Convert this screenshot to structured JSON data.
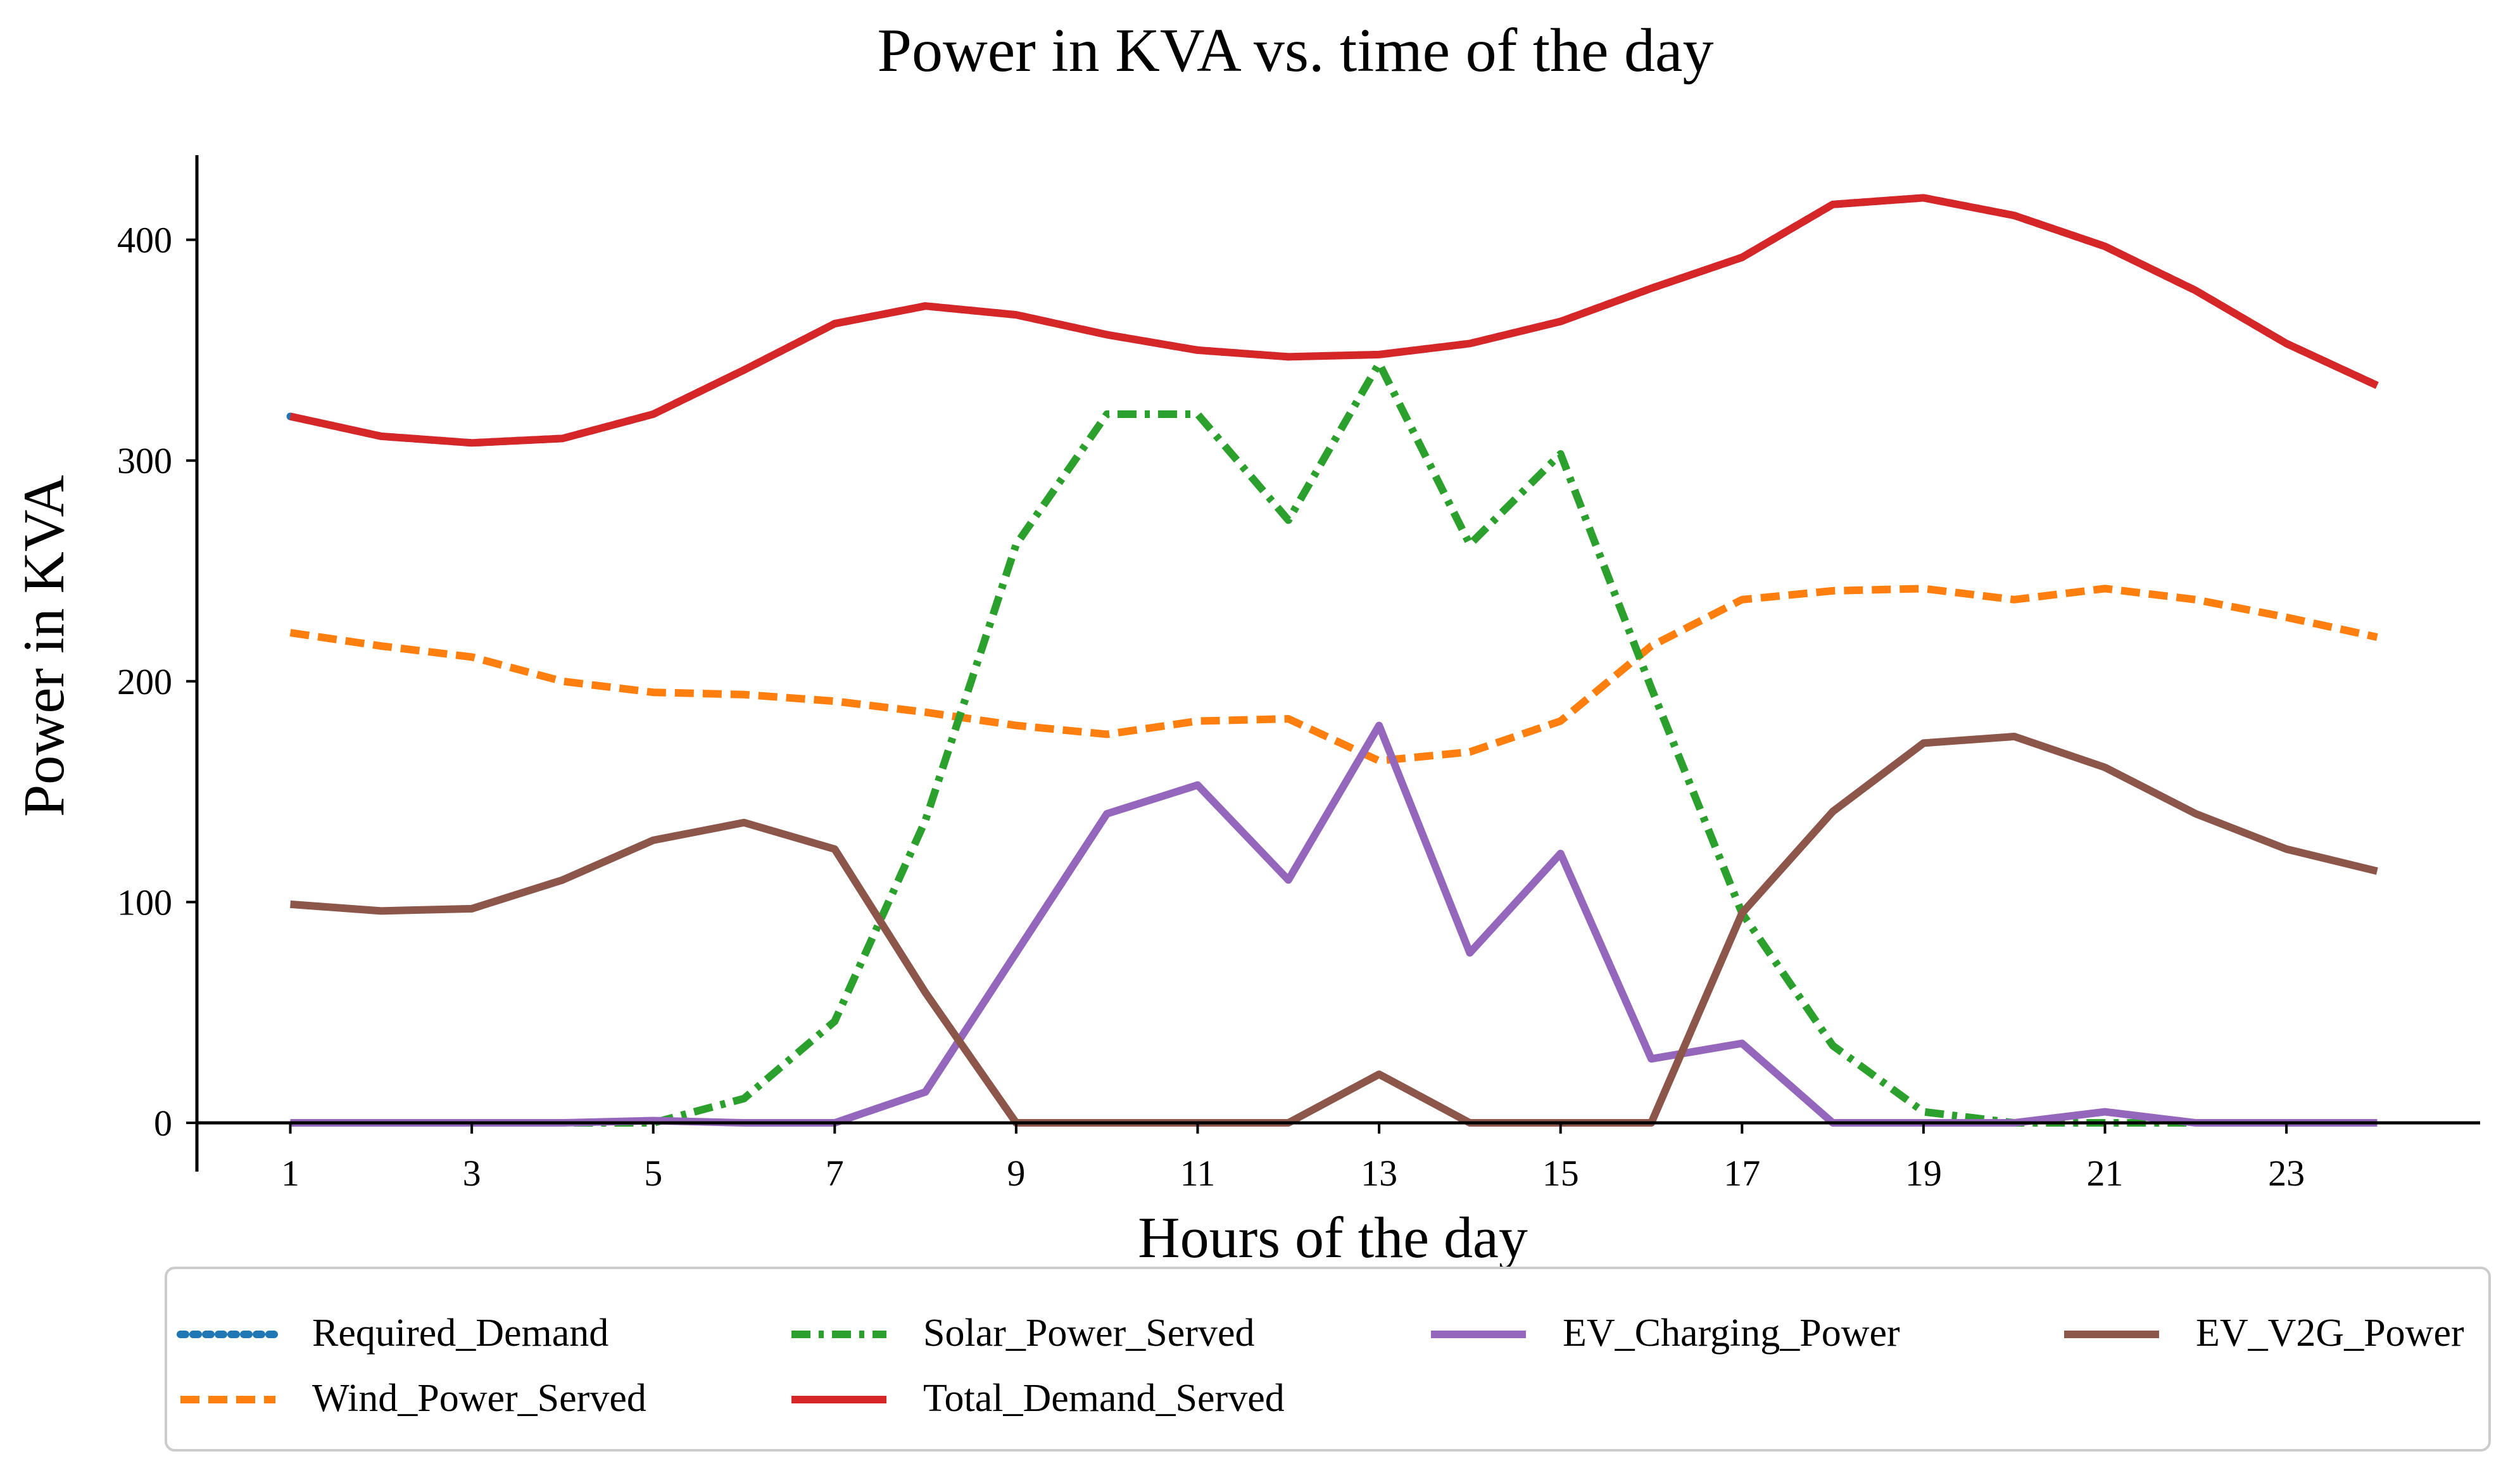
{
  "chart_data": {
    "type": "line",
    "title": "Power in KVA vs. time of the day",
    "xlabel": "Hours of the day",
    "ylabel": "Power in KVA",
    "x": [
      1,
      2,
      3,
      4,
      5,
      6,
      7,
      8,
      9,
      10,
      11,
      12,
      13,
      14,
      15,
      16,
      17,
      18,
      19,
      20,
      21,
      22,
      23,
      24
    ],
    "xticks": [
      1,
      3,
      5,
      7,
      9,
      11,
      13,
      15,
      17,
      19,
      21,
      23
    ],
    "yticks": [
      0,
      100,
      200,
      300,
      400
    ],
    "xlim": [
      0,
      25
    ],
    "ylim": [
      -22,
      440
    ],
    "grid": false,
    "legend_position": "bottom",
    "series": [
      {
        "name": "Required_Demand",
        "color": "#1f77b4",
        "style": "dotted",
        "values": [
          320,
          311,
          308,
          310,
          321,
          341,
          362,
          370,
          366,
          357,
          350,
          347,
          348,
          353,
          363,
          378,
          392,
          416,
          419,
          411,
          397,
          377,
          353,
          334
        ]
      },
      {
        "name": "Wind_Power_Served",
        "color": "#ff7f0e",
        "style": "dashed",
        "values": [
          222,
          216,
          211,
          200,
          195,
          194,
          191,
          186,
          180,
          176,
          182,
          183,
          164,
          168,
          182,
          216,
          237,
          241,
          242,
          237,
          242,
          237,
          229,
          220
        ]
      },
      {
        "name": "Solar_Power_Served",
        "color": "#2ca02c",
        "style": "dashdot",
        "values": [
          0,
          0,
          0,
          0,
          0,
          11,
          46,
          137,
          262,
          321,
          321,
          273,
          344,
          262,
          303,
          197,
          95,
          35,
          5,
          0,
          0,
          0,
          0,
          0
        ]
      },
      {
        "name": "Total_Demand_Served",
        "color": "#d62728",
        "style": "solid",
        "values": [
          320,
          311,
          308,
          310,
          321,
          341,
          362,
          370,
          366,
          357,
          350,
          347,
          348,
          353,
          363,
          378,
          392,
          416,
          419,
          411,
          397,
          377,
          353,
          334
        ]
      },
      {
        "name": "EV_Charging_Power",
        "color": "#9467bd",
        "style": "solid",
        "values": [
          0,
          0,
          0,
          0,
          1,
          0,
          0,
          14,
          77,
          140,
          153,
          110,
          180,
          77,
          122,
          29,
          36,
          0,
          0,
          0,
          5,
          0,
          0,
          0
        ]
      },
      {
        "name": "EV_V2G_Power",
        "color": "#8c564b",
        "style": "solid",
        "values": [
          99,
          96,
          97,
          110,
          128,
          136,
          124,
          59,
          0,
          0,
          0,
          0,
          22,
          0,
          0,
          0,
          95,
          141,
          172,
          175,
          161,
          140,
          124,
          114
        ]
      }
    ],
    "legend_order": [
      "Required_Demand",
      "Solar_Power_Served",
      "EV_Charging_Power",
      "EV_V2G_Power",
      "Wind_Power_Served",
      "Total_Demand_Served"
    ]
  }
}
